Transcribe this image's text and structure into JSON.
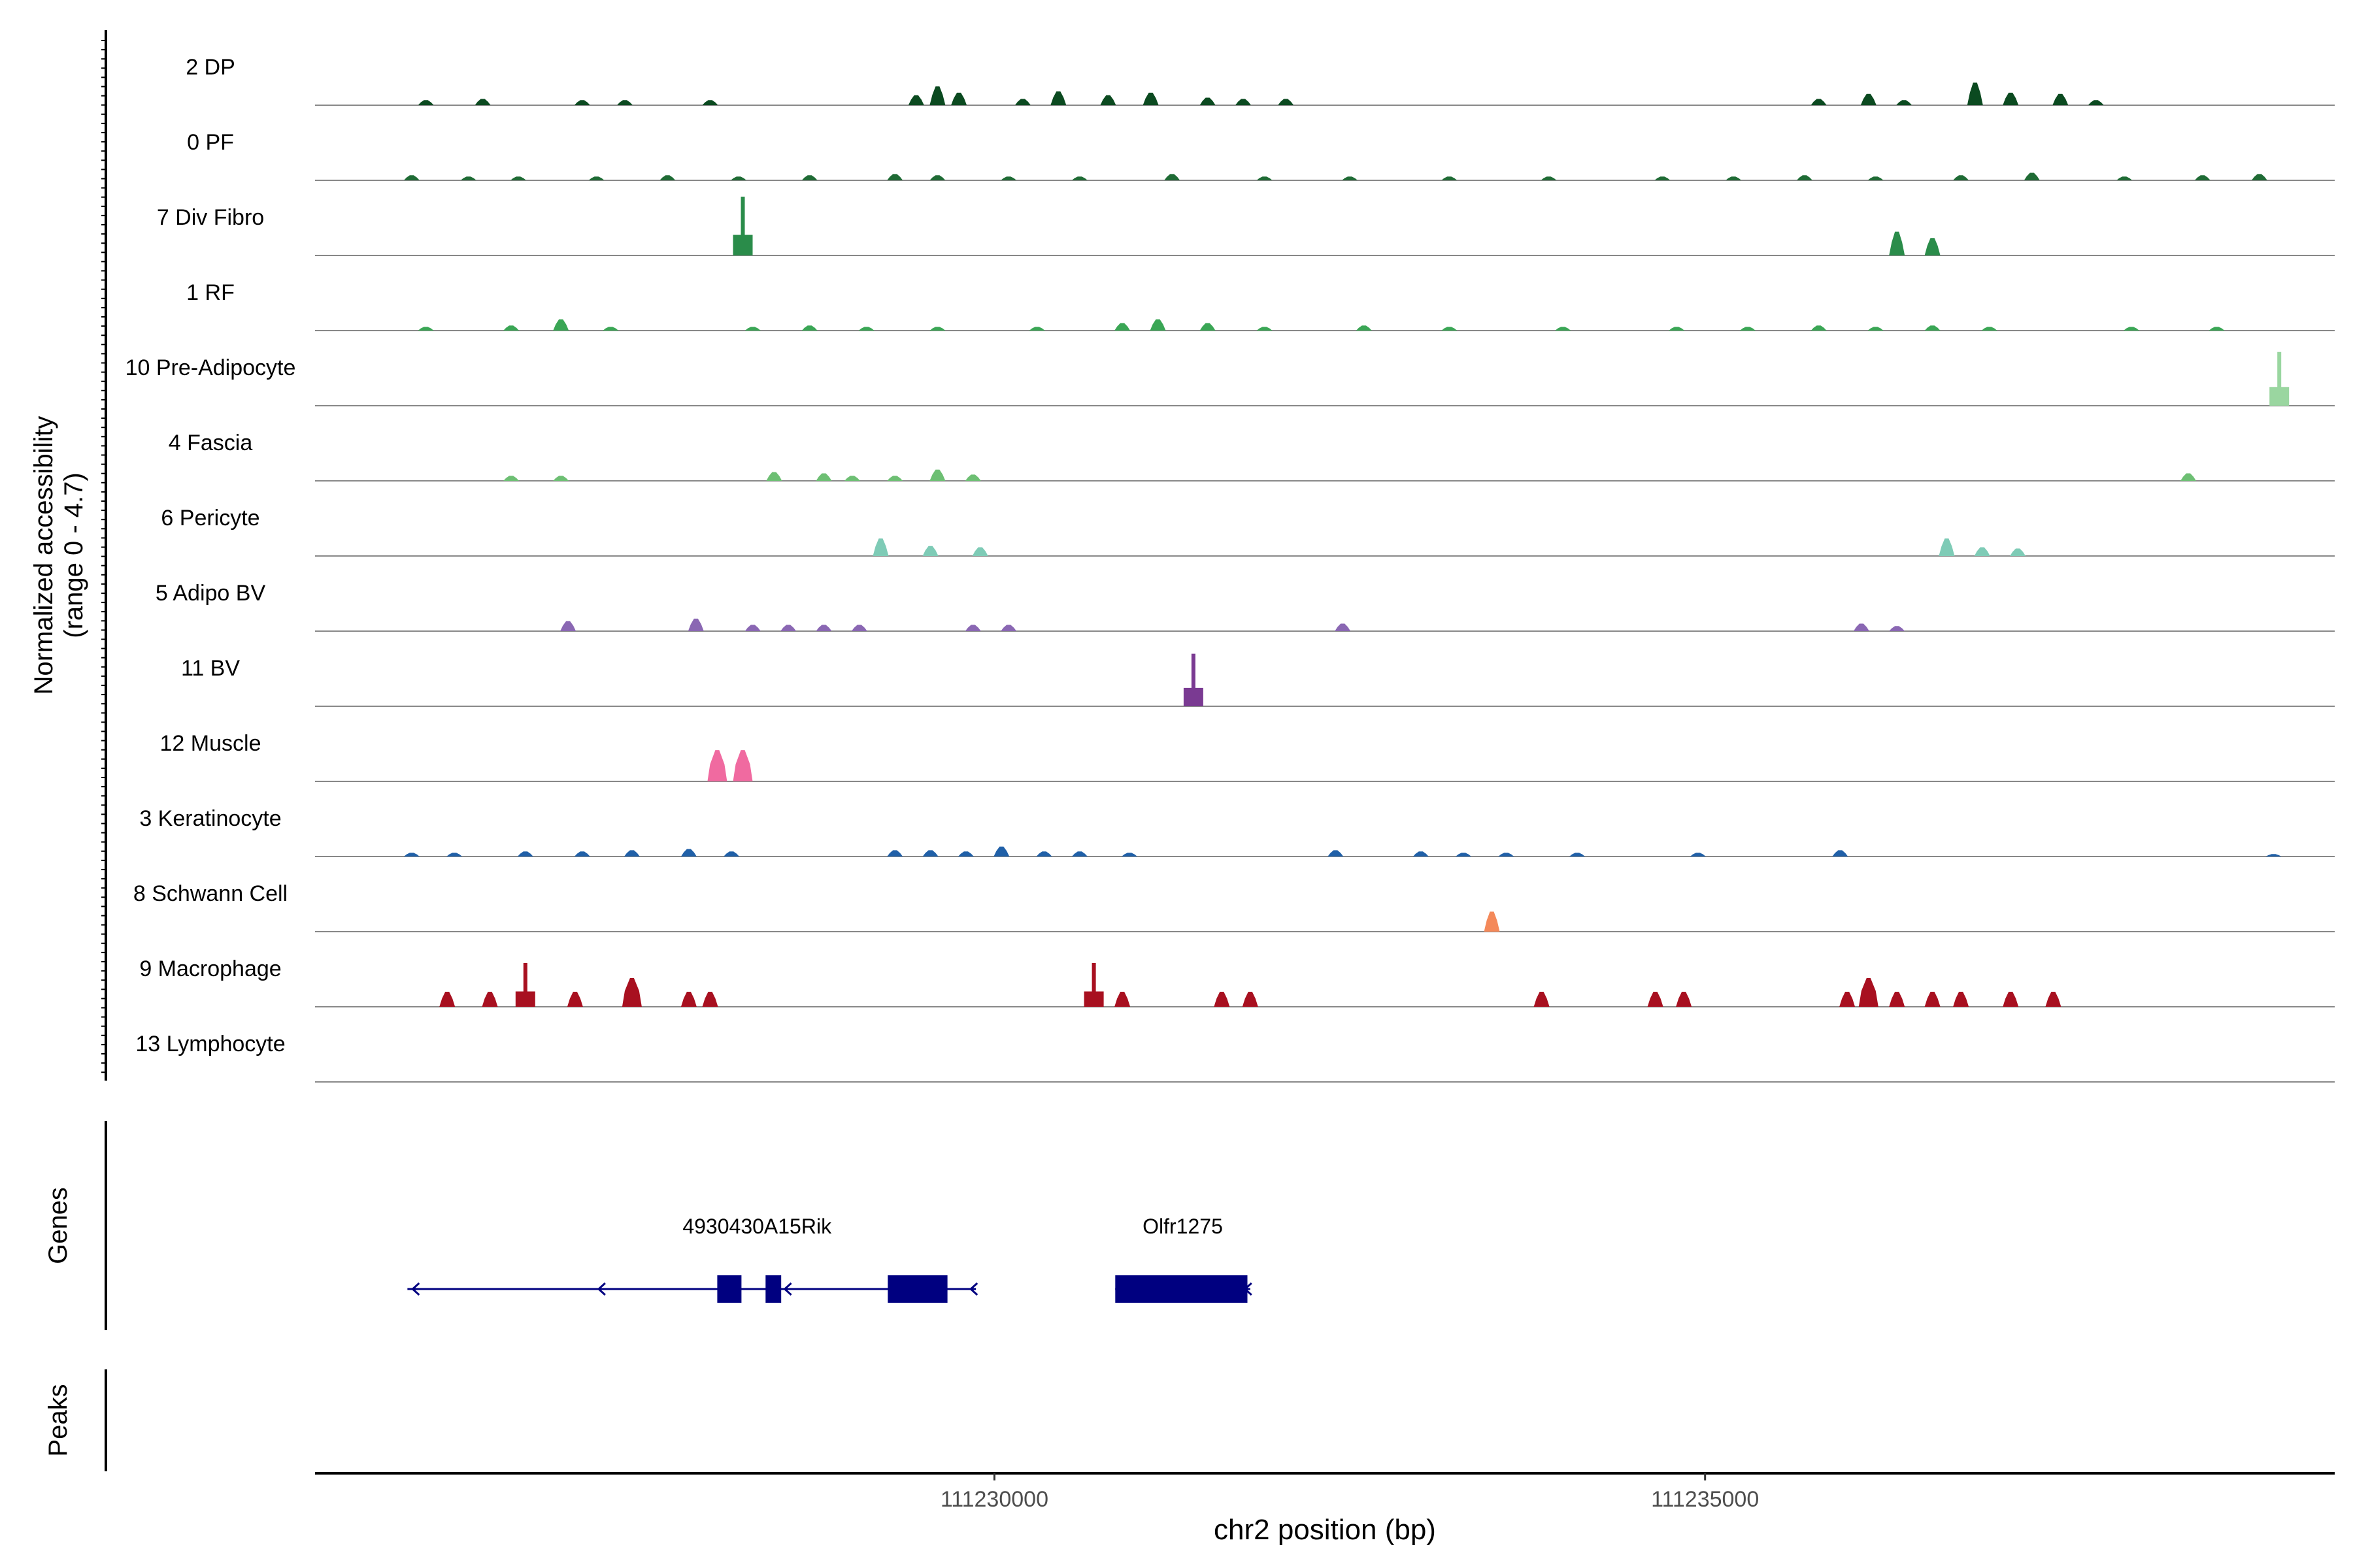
{
  "chart_data": {
    "type": "area",
    "title": "",
    "xlabel": "chr2 position (bp)",
    "ylabel_line1": "Normalized accessibility",
    "ylabel_line2": "(range 0 - 4.7)",
    "y_range": [
      0,
      4.7
    ],
    "x_range": [
      111225220,
      111239430
    ],
    "x_ticks": [
      111230000,
      111235000
    ],
    "x_tick_labels": [
      "111230000",
      "111235000"
    ],
    "genes_label": "Genes",
    "peaks_label": "Peaks",
    "tracks": [
      {
        "name": "2 DP",
        "color": "#0b4a20",
        "peaks": [
          [
            111226000,
            0.4
          ],
          [
            111226400,
            0.5
          ],
          [
            111227100,
            0.4
          ],
          [
            111227400,
            0.4
          ],
          [
            111228000,
            0.4
          ],
          [
            111229450,
            0.8
          ],
          [
            111229600,
            1.5
          ],
          [
            111229750,
            1.0
          ],
          [
            111230200,
            0.5
          ],
          [
            111230450,
            1.1
          ],
          [
            111230800,
            0.8
          ],
          [
            111231100,
            1.0
          ],
          [
            111231500,
            0.6
          ],
          [
            111231750,
            0.5
          ],
          [
            111232050,
            0.5
          ],
          [
            111235800,
            0.5
          ],
          [
            111236150,
            0.9
          ],
          [
            111236400,
            0.4
          ],
          [
            111236900,
            1.8
          ],
          [
            111237150,
            1.0
          ],
          [
            111237500,
            0.9
          ],
          [
            111237750,
            0.4
          ]
        ]
      },
      {
        "name": "0 PF",
        "color": "#1f6b35",
        "peaks": [
          [
            111225900,
            0.4
          ],
          [
            111226300,
            0.3
          ],
          [
            111226650,
            0.3
          ],
          [
            111227200,
            0.3
          ],
          [
            111227700,
            0.4
          ],
          [
            111228200,
            0.3
          ],
          [
            111228700,
            0.4
          ],
          [
            111229300,
            0.5
          ],
          [
            111229600,
            0.4
          ],
          [
            111230100,
            0.3
          ],
          [
            111230600,
            0.3
          ],
          [
            111231250,
            0.5
          ],
          [
            111231900,
            0.3
          ],
          [
            111232500,
            0.3
          ],
          [
            111233200,
            0.3
          ],
          [
            111233900,
            0.3
          ],
          [
            111234700,
            0.3
          ],
          [
            111235200,
            0.3
          ],
          [
            111235700,
            0.4
          ],
          [
            111236200,
            0.3
          ],
          [
            111236800,
            0.4
          ],
          [
            111237300,
            0.6
          ],
          [
            111237950,
            0.3
          ],
          [
            111238500,
            0.4
          ],
          [
            111238900,
            0.5
          ]
        ]
      },
      {
        "name": "7 Div Fibro",
        "color": "#2a8c4a",
        "peaks": [
          [
            111228230,
            4.7
          ],
          [
            111236350,
            1.9
          ],
          [
            111236600,
            1.4
          ]
        ]
      },
      {
        "name": "1 RF",
        "color": "#3aa655",
        "peaks": [
          [
            111226000,
            0.3
          ],
          [
            111226600,
            0.4
          ],
          [
            111226950,
            0.9
          ],
          [
            111227300,
            0.3
          ],
          [
            111228300,
            0.3
          ],
          [
            111228700,
            0.4
          ],
          [
            111229100,
            0.3
          ],
          [
            111229600,
            0.3
          ],
          [
            111230300,
            0.3
          ],
          [
            111230900,
            0.6
          ],
          [
            111231150,
            0.9
          ],
          [
            111231500,
            0.6
          ],
          [
            111231900,
            0.3
          ],
          [
            111232600,
            0.4
          ],
          [
            111233200,
            0.3
          ],
          [
            111234000,
            0.3
          ],
          [
            111234800,
            0.3
          ],
          [
            111235300,
            0.3
          ],
          [
            111235800,
            0.4
          ],
          [
            111236200,
            0.3
          ],
          [
            111236600,
            0.4
          ],
          [
            111237000,
            0.3
          ],
          [
            111238000,
            0.3
          ],
          [
            111238600,
            0.3
          ]
        ]
      },
      {
        "name": "10 Pre-Adipocyte",
        "color": "#9ad6a0",
        "peaks": [
          [
            111239040,
            4.3
          ]
        ]
      },
      {
        "name": "4 Fascia",
        "color": "#6dbf73",
        "peaks": [
          [
            111226600,
            0.4
          ],
          [
            111226950,
            0.4
          ],
          [
            111228450,
            0.7
          ],
          [
            111228800,
            0.6
          ],
          [
            111229000,
            0.4
          ],
          [
            111229300,
            0.4
          ],
          [
            111229600,
            0.9
          ],
          [
            111229850,
            0.5
          ],
          [
            111238400,
            0.6
          ]
        ]
      },
      {
        "name": "6 Pericyte",
        "color": "#7ecbb6",
        "peaks": [
          [
            111229200,
            1.4
          ],
          [
            111229550,
            0.8
          ],
          [
            111229900,
            0.7
          ],
          [
            111236700,
            1.4
          ],
          [
            111236950,
            0.7
          ],
          [
            111237200,
            0.6
          ]
        ]
      },
      {
        "name": "5 Adipo BV",
        "color": "#8a67b3",
        "peaks": [
          [
            111227000,
            0.8
          ],
          [
            111227900,
            1.0
          ],
          [
            111228300,
            0.5
          ],
          [
            111228550,
            0.5
          ],
          [
            111228800,
            0.5
          ],
          [
            111229050,
            0.5
          ],
          [
            111229850,
            0.5
          ],
          [
            111230100,
            0.5
          ],
          [
            111232450,
            0.6
          ],
          [
            111236100,
            0.6
          ],
          [
            111236350,
            0.4
          ]
        ]
      },
      {
        "name": "11 BV",
        "color": "#7a3a92",
        "peaks": [
          [
            111231400,
            4.2
          ]
        ]
      },
      {
        "name": "12 Muscle",
        "color": "#f06aa0",
        "peaks": [
          [
            111228050,
            2.5
          ],
          [
            111228230,
            2.5
          ]
        ]
      },
      {
        "name": "3 Keratinocyte",
        "color": "#2060a8",
        "peaks": [
          [
            111225900,
            0.3
          ],
          [
            111226200,
            0.3
          ],
          [
            111226700,
            0.4
          ],
          [
            111227100,
            0.4
          ],
          [
            111227450,
            0.5
          ],
          [
            111227850,
            0.6
          ],
          [
            111228150,
            0.4
          ],
          [
            111229300,
            0.5
          ],
          [
            111229550,
            0.5
          ],
          [
            111229800,
            0.4
          ],
          [
            111230050,
            0.8
          ],
          [
            111230350,
            0.4
          ],
          [
            111230600,
            0.4
          ],
          [
            111230950,
            0.3
          ],
          [
            111232400,
            0.5
          ],
          [
            111233000,
            0.4
          ],
          [
            111233300,
            0.3
          ],
          [
            111233600,
            0.3
          ],
          [
            111234100,
            0.3
          ],
          [
            111234950,
            0.3
          ],
          [
            111235950,
            0.5
          ],
          [
            111239000,
            0.2
          ]
        ]
      },
      {
        "name": "8 Schwann Cell",
        "color": "#f4895a",
        "peaks": [
          [
            111233500,
            1.6
          ]
        ]
      },
      {
        "name": "9 Macrophage",
        "color": "#a81020",
        "peaks": [
          [
            111226150,
            1.2
          ],
          [
            111226450,
            1.2
          ],
          [
            111226700,
            3.5
          ],
          [
            111227050,
            1.2
          ],
          [
            111227450,
            2.3
          ],
          [
            111227850,
            1.2
          ],
          [
            111228000,
            1.2
          ],
          [
            111230700,
            3.5
          ],
          [
            111230900,
            1.2
          ],
          [
            111231600,
            1.2
          ],
          [
            111231800,
            1.2
          ],
          [
            111233850,
            1.2
          ],
          [
            111234650,
            1.2
          ],
          [
            111234850,
            1.2
          ],
          [
            111236000,
            1.2
          ],
          [
            111236150,
            2.3
          ],
          [
            111236350,
            1.2
          ],
          [
            111236600,
            1.2
          ],
          [
            111236800,
            1.2
          ],
          [
            111237150,
            1.2
          ],
          [
            111237450,
            1.2
          ]
        ]
      },
      {
        "name": "13 Lymphocyte",
        "color": "#444444",
        "peaks": []
      }
    ],
    "genes": [
      {
        "name": "4930430A15Rik",
        "start": 111225870,
        "end": 111229870,
        "strand": "-",
        "exons": [
          [
            111228050,
            111228220
          ],
          [
            111228390,
            111228500
          ],
          [
            111229250,
            111229670
          ]
        ]
      },
      {
        "name": "Olfr1275",
        "start": 111230850,
        "end": 111231800,
        "strand": "-",
        "exons": [
          [
            111230850,
            111231780
          ]
        ]
      }
    ]
  }
}
